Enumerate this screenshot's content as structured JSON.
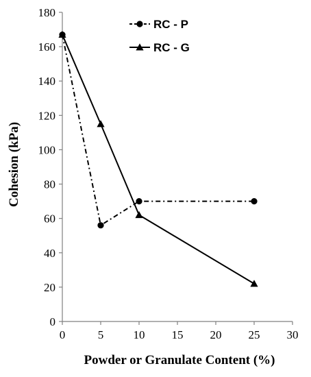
{
  "chart_data": {
    "type": "line",
    "xlabel": "Powder or Granulate  Content  (%)",
    "ylabel": "Cohesion  (kPa)",
    "xlim": [
      0,
      30
    ],
    "ylim": [
      0,
      180
    ],
    "xticks": [
      0,
      5,
      10,
      15,
      20,
      25,
      30
    ],
    "yticks": [
      0,
      20,
      40,
      60,
      80,
      100,
      120,
      140,
      160,
      180
    ],
    "grid": false,
    "legend_position": "top-center",
    "series": [
      {
        "name": "RC - P",
        "marker": "circle",
        "line_style": "dash-dot",
        "color": "#000000",
        "x": [
          0,
          5,
          10,
          25
        ],
        "y": [
          167,
          56,
          70,
          70
        ]
      },
      {
        "name": "RC - G",
        "marker": "triangle",
        "line_style": "solid",
        "color": "#000000",
        "x": [
          0,
          5,
          10,
          25
        ],
        "y": [
          167,
          115,
          62,
          22
        ]
      }
    ]
  }
}
